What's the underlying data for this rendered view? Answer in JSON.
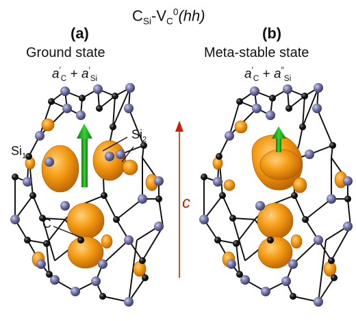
{
  "title": {
    "main": "C",
    "main_sub": "Si",
    "dash": "-V",
    "v_sub": "C",
    "v_sup": "0",
    "config": "(hh)"
  },
  "panels": [
    {
      "label": "(a)",
      "state": "Ground state",
      "formula": {
        "a1": "a",
        "a1_mark": "′",
        "a1_sub": "C",
        "plus": "+",
        "a2": "a",
        "a2_mark": "′",
        "a2_sub": "Si"
      },
      "atom_labels": {
        "si1": "Si",
        "si1_sub": "1",
        "si2": "Si",
        "si2_sub": "2",
        "c": "C"
      }
    },
    {
      "label": "(b)",
      "state": "Meta-stable state",
      "formula": {
        "a1": "a",
        "a1_mark": "′",
        "a1_sub": "C",
        "plus": "+",
        "a2": "a",
        "a2_mark": "″",
        "a2_sub": "Si"
      }
    }
  ],
  "c_axis": {
    "label": "c",
    "color": "#cc2200"
  },
  "colors": {
    "density": "#f39a12",
    "density_dark": "#b85e00",
    "si_atom": "#6f6fa0",
    "c_atom": "#111111",
    "spin_arrow": "#1aa818",
    "axis_arrow": "#cc2200"
  }
}
